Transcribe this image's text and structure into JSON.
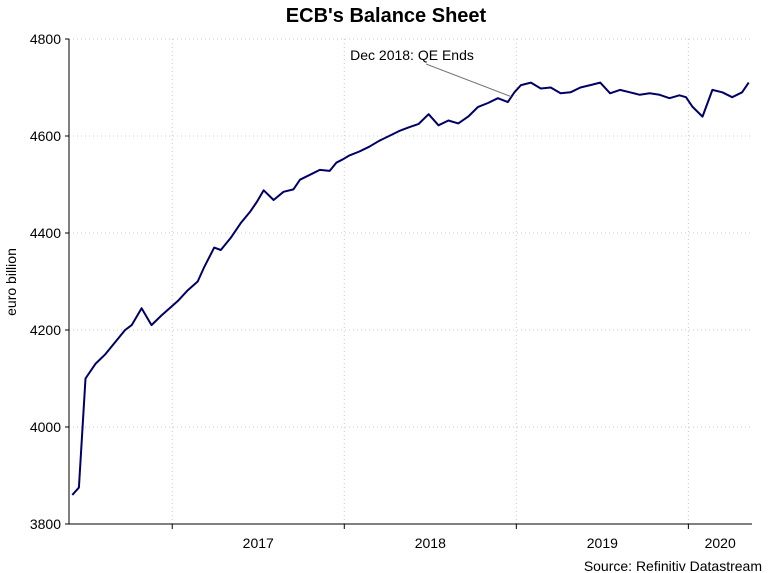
{
  "chart_data": {
    "type": "line",
    "title": "ECB's Balance Sheet",
    "xlabel": "",
    "ylabel": "euro billion",
    "ylim": [
      3800,
      4800
    ],
    "yticks": [
      "3800",
      "4000",
      "4200",
      "4400",
      "4600",
      "4800"
    ],
    "xtick_labels": [
      "2017",
      "2018",
      "2019",
      "2020"
    ],
    "grid": true,
    "annotation": {
      "text": "Dec 2018: QE Ends",
      "x": "2018-12-21",
      "y": 4675
    },
    "source": "Source: Refinitiv Datastream",
    "line_color": "#000066",
    "series": [
      {
        "name": "",
        "x": [
          "2016-06-03",
          "2016-06-17",
          "2016-07-01",
          "2016-07-22",
          "2016-08-12",
          "2016-09-02",
          "2016-09-23",
          "2016-10-07",
          "2016-10-28",
          "2016-11-18",
          "2016-12-09",
          "2016-12-30",
          "2017-01-13",
          "2017-02-03",
          "2017-02-24",
          "2017-03-10",
          "2017-03-31",
          "2017-04-14",
          "2017-05-05",
          "2017-05-26",
          "2017-06-16",
          "2017-06-30",
          "2017-07-14",
          "2017-08-04",
          "2017-08-25",
          "2017-09-15",
          "2017-09-29",
          "2017-10-20",
          "2017-11-10",
          "2017-12-01",
          "2017-12-15",
          "2017-12-29",
          "2018-01-12",
          "2018-02-02",
          "2018-02-23",
          "2018-03-16",
          "2018-04-06",
          "2018-04-27",
          "2018-05-18",
          "2018-06-08",
          "2018-06-29",
          "2018-07-20",
          "2018-08-10",
          "2018-08-31",
          "2018-09-21",
          "2018-10-12",
          "2018-11-02",
          "2018-11-23",
          "2018-12-14",
          "2018-12-28",
          "2019-01-11",
          "2019-02-01",
          "2019-02-22",
          "2019-03-15",
          "2019-04-05",
          "2019-04-26",
          "2019-05-17",
          "2019-06-07",
          "2019-06-28",
          "2019-07-19",
          "2019-08-09",
          "2019-08-30",
          "2019-09-20",
          "2019-10-11",
          "2019-11-01",
          "2019-11-22",
          "2019-12-13",
          "2019-12-27",
          "2020-01-10",
          "2020-01-31",
          "2020-02-21",
          "2020-03-13",
          "2020-04-03",
          "2020-04-24",
          "2020-05-08"
        ],
        "values": [
          3860,
          3875,
          4100,
          4130,
          4150,
          4175,
          4200,
          4210,
          4245,
          4210,
          4230,
          4248,
          4260,
          4282,
          4300,
          4330,
          4370,
          4365,
          4390,
          4420,
          4445,
          4465,
          4488,
          4468,
          4485,
          4490,
          4510,
          4520,
          4530,
          4528,
          4545,
          4552,
          4560,
          4568,
          4578,
          4590,
          4600,
          4610,
          4618,
          4625,
          4645,
          4622,
          4632,
          4626,
          4640,
          4660,
          4668,
          4678,
          4670,
          4690,
          4705,
          4710,
          4698,
          4700,
          4688,
          4690,
          4700,
          4705,
          4710,
          4688,
          4695,
          4690,
          4685,
          4688,
          4685,
          4678,
          4684,
          4680,
          4660,
          4640,
          4695,
          4690,
          4680,
          4690,
          4710
        ]
      }
    ]
  }
}
